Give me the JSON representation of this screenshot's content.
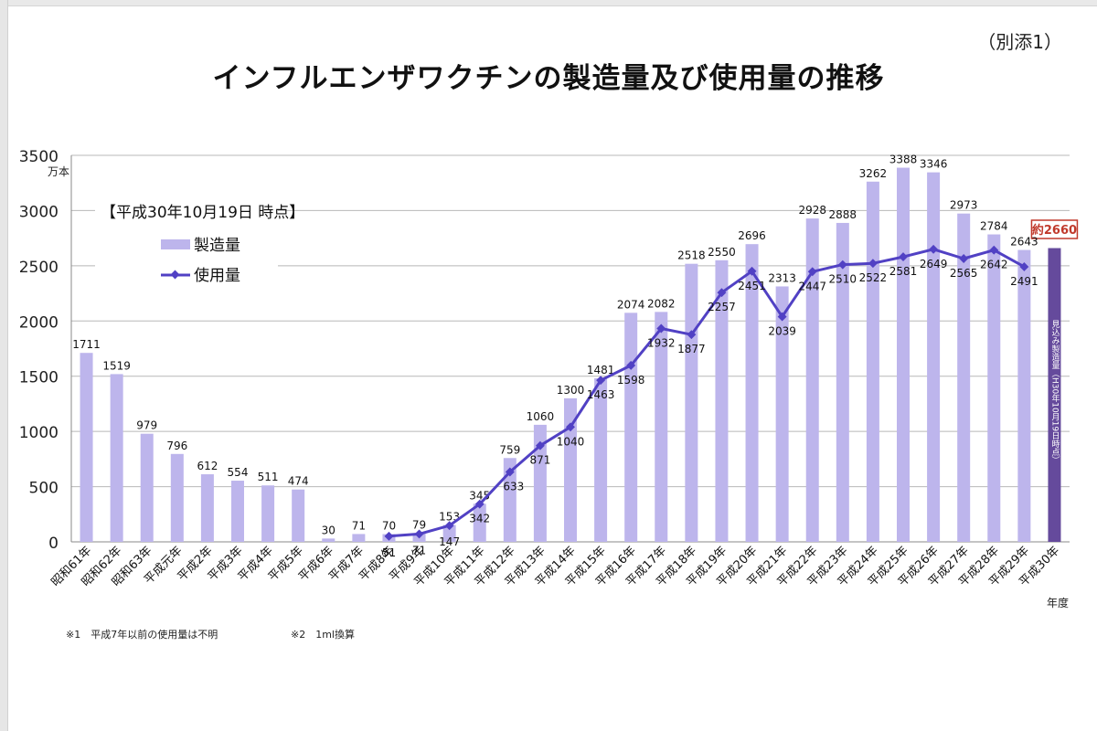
{
  "document": {
    "title": "インフルエンザワクチンの製造量及び使用量の推移",
    "attachment_label": "（別添1）",
    "notes": [
      "※1　平成7年以前の使用量は不明",
      "※2　1ml換算"
    ]
  },
  "colors": {
    "bar": "#bdb5ec",
    "line": "#5141c4",
    "estimate_bar": "#654a9c",
    "estimate_label_border": "#c0392b",
    "estimate_label_text": "#c0392b"
  },
  "chart_data": {
    "type": "bar",
    "title": "インフルエンザワクチンの製造量及び使用量の推移",
    "ylabel": "万本",
    "xlabel": "年度",
    "ylim": [
      0,
      3500
    ],
    "yticks": [
      0,
      500,
      1000,
      1500,
      2000,
      2500,
      3000,
      3500
    ],
    "grid": true,
    "as_of": "【平成30年10月19日 時点】",
    "categories": [
      "昭和61年",
      "昭和62年",
      "昭和63年",
      "平成元年",
      "平成2年",
      "平成3年",
      "平成4年",
      "平成5年",
      "平成6年",
      "平成7年",
      "平成8年",
      "平成9年",
      "平成10年",
      "平成11年",
      "平成12年",
      "平成13年",
      "平成14年",
      "平成15年",
      "平成16年",
      "平成17年",
      "平成18年",
      "平成19年",
      "平成20年",
      "平成21年",
      "平成22年",
      "平成23年",
      "平成24年",
      "平成25年",
      "平成26年",
      "平成27年",
      "平成28年",
      "平成29年",
      "平成30年"
    ],
    "series": [
      {
        "name": "製造量",
        "type": "bar",
        "values": [
          1711,
          1519,
          979,
          796,
          612,
          554,
          511,
          474,
          30,
          71,
          70,
          79,
          153,
          345,
          759,
          1060,
          1300,
          1481,
          2074,
          2082,
          2518,
          2550,
          2696,
          2313,
          2928,
          2888,
          3262,
          3388,
          3346,
          2973,
          2784,
          2643,
          null
        ]
      },
      {
        "name": "使用量",
        "type": "line",
        "values": [
          null,
          null,
          null,
          null,
          null,
          null,
          null,
          null,
          null,
          null,
          51,
          71,
          147,
          342,
          633,
          871,
          1040,
          1463,
          1598,
          1932,
          1877,
          2257,
          2451,
          2039,
          2447,
          2510,
          2522,
          2581,
          2649,
          2565,
          2642,
          2491,
          null
        ]
      }
    ],
    "estimate": {
      "category": "平成30年",
      "value": 2660,
      "label": "約2660",
      "bar_text": "見込み製造量（H30年10月19日時点）"
    }
  }
}
